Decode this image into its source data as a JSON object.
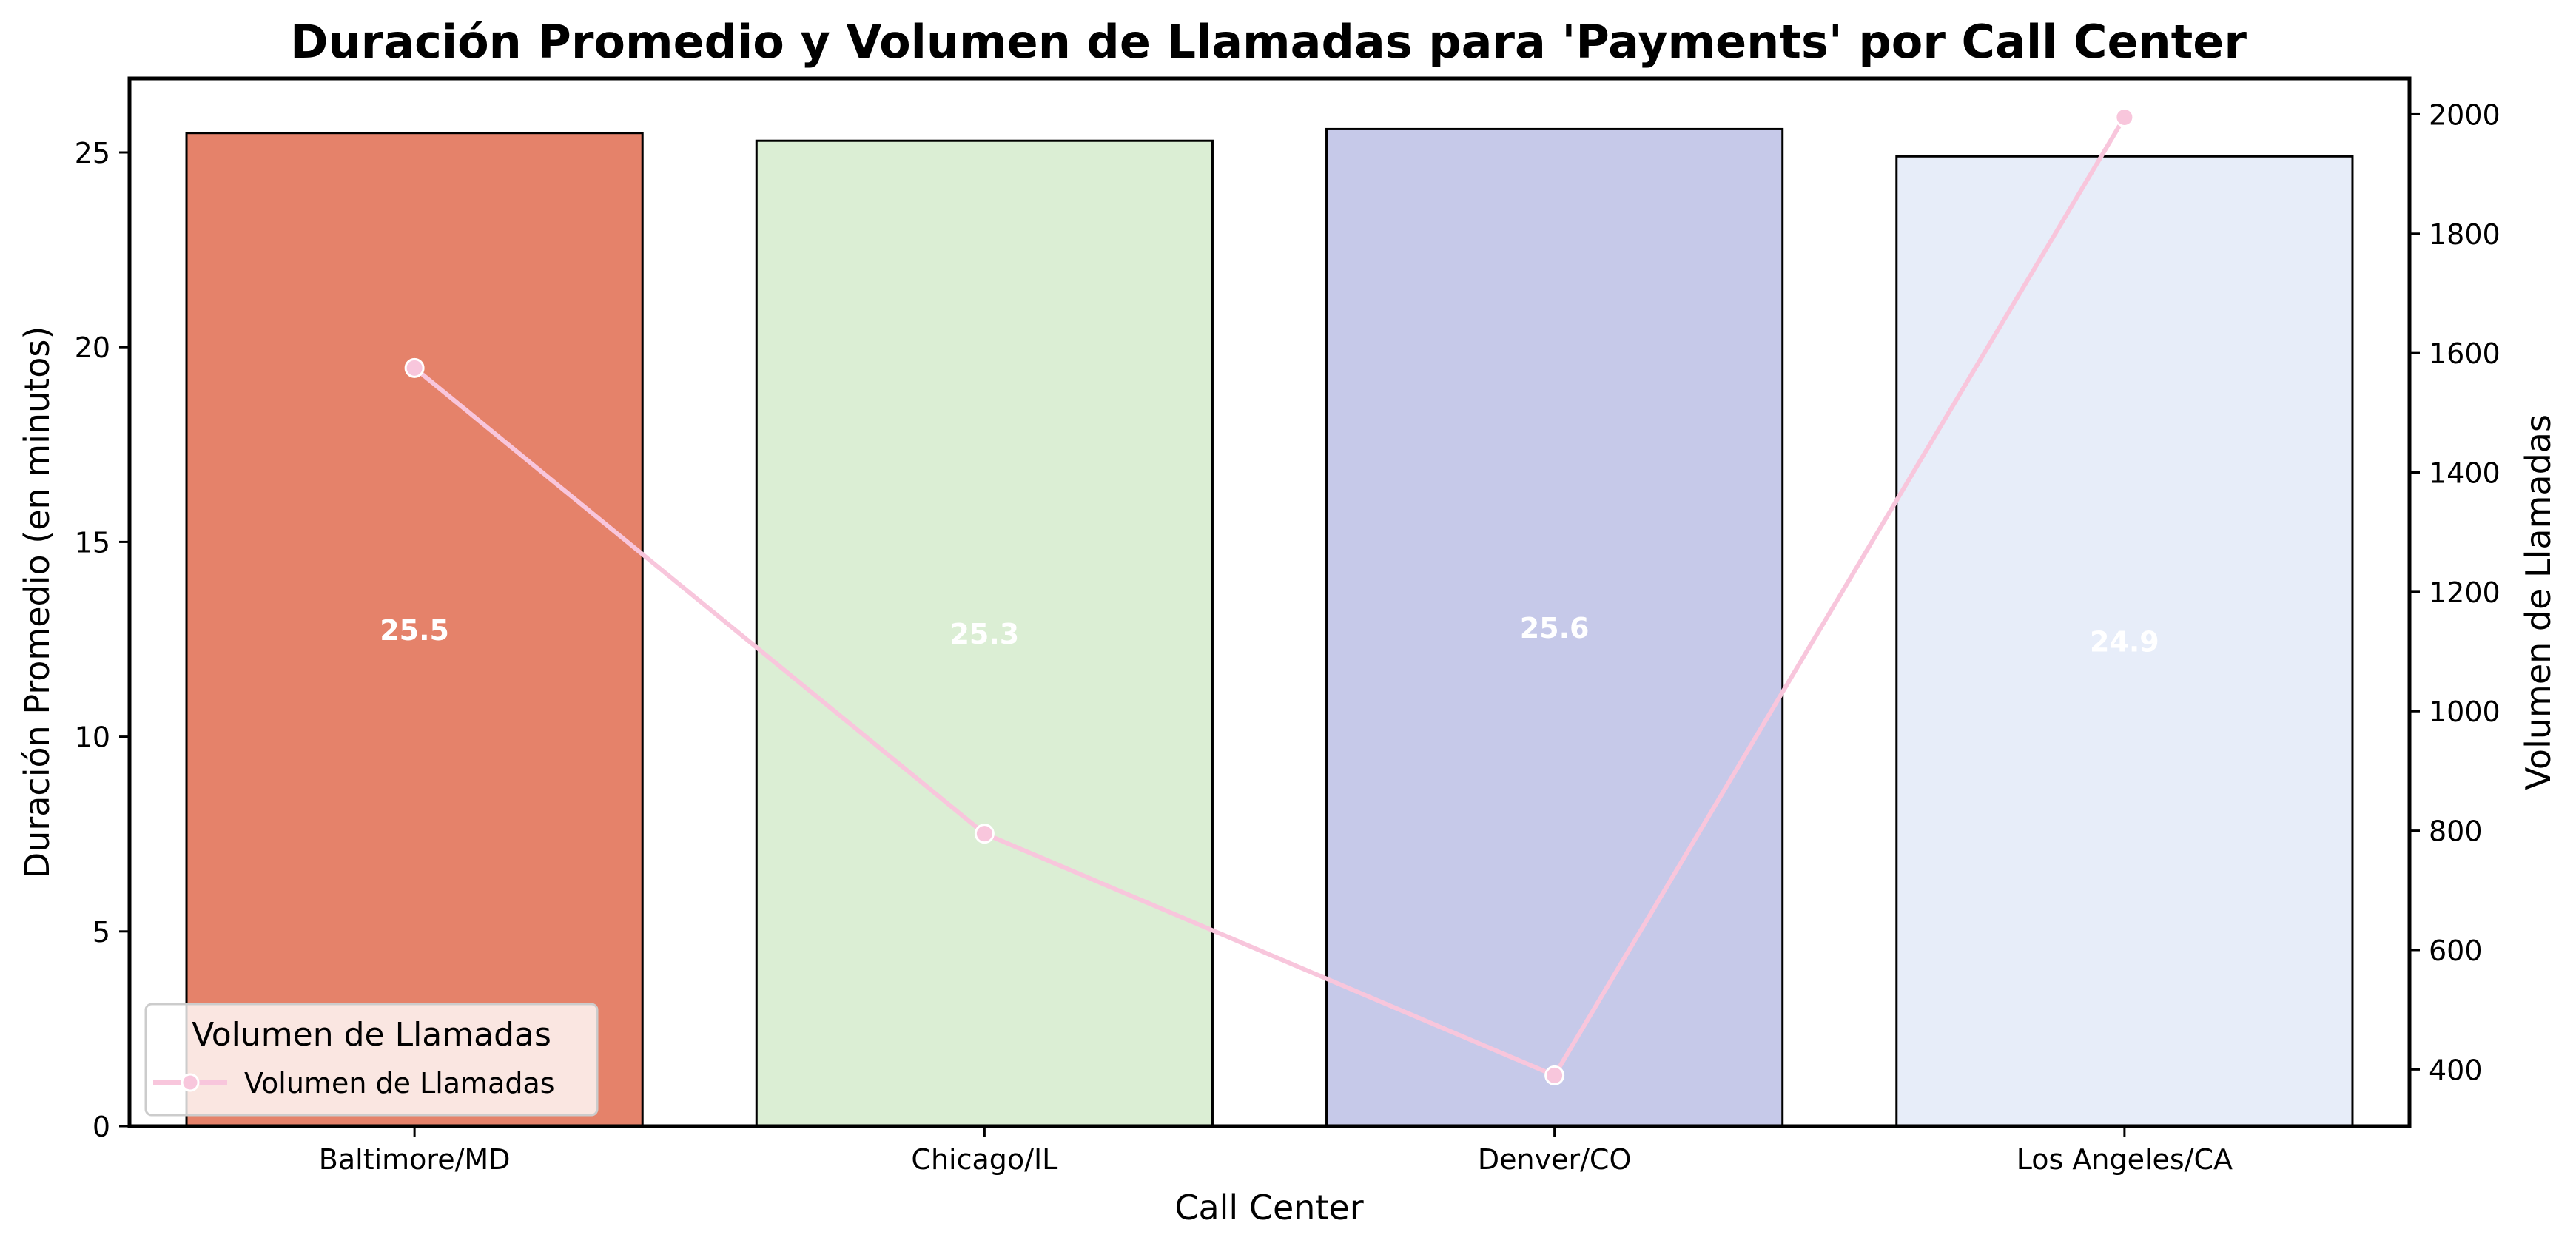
{
  "chart_data": {
    "type": "bar",
    "title": "Duración Promedio y Volumen de Llamadas para 'Payments' por Call Center",
    "xlabel": "Call Center",
    "ylabel": "Duración Promedio (en minutos)",
    "y2label": "Volumen de Llamadas",
    "categories": [
      "Baltimore/MD",
      "Chicago/IL",
      "Denver/CO",
      "Los Angeles/CA"
    ],
    "series": [
      {
        "type": "bar",
        "axis": "left",
        "values": [
          25.5,
          25.3,
          25.6,
          24.9
        ],
        "data_labels": [
          "25.5",
          "25.3",
          "25.6",
          "24.9"
        ],
        "colors": [
          "#e5826a",
          "#dbeed4",
          "#c6c9e9",
          "#e7edf9"
        ]
      },
      {
        "type": "line",
        "axis": "right",
        "name": "Volumen de Llamadas",
        "values": [
          1575,
          795,
          390,
          1995
        ],
        "color": "#f8c6dc"
      }
    ],
    "ylim": [
      0,
      26.9
    ],
    "y2lim": [
      305,
      2060
    ],
    "yticks": [
      0,
      5,
      10,
      15,
      20,
      25
    ],
    "y2ticks": [
      400,
      600,
      800,
      1000,
      1200,
      1400,
      1600,
      1800,
      2000
    ],
    "legend": {
      "title": "Volumen de Llamadas",
      "entries": [
        "Volumen de Llamadas"
      ],
      "placement": "lower-left"
    },
    "grid": false
  }
}
